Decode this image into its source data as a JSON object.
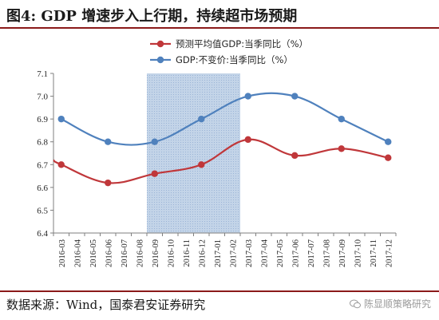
{
  "figure": {
    "title": "图4: GDP 增速步入上行期，持续超市场预期",
    "source": "数据来源：Wind，国泰君安证券研究",
    "watermark": "陈显顺策略研究"
  },
  "chart_data": {
    "type": "line",
    "title": "",
    "xlabel": "",
    "ylabel": "",
    "categories": [
      "2016-03",
      "2016-04",
      "2016-05",
      "2016-06",
      "2016-07",
      "2016-08",
      "2016-09",
      "2016-10",
      "2016-11",
      "2016-12",
      "2017-01",
      "2017-02",
      "2017-03",
      "2017-04",
      "2017-05",
      "2017-06",
      "2017-07",
      "2017-08",
      "2017-09",
      "2017-10",
      "2017-11",
      "2017-12"
    ],
    "ylim": [
      6.4,
      7.1
    ],
    "yticks": [
      "6.4",
      "6.5",
      "6.6",
      "6.7",
      "6.8",
      "6.9",
      "7.0",
      "7.1"
    ],
    "shaded_range": [
      "2016-09",
      "2017-02"
    ],
    "grid": false,
    "legend_position": "top-center",
    "series": [
      {
        "name": "预测平均值GDP:当季同比（%）",
        "color": "#c0373a",
        "smooth": true,
        "lead_in": 6.72,
        "points": [
          {
            "x": "2016-03",
            "y": 6.7
          },
          {
            "x": "2016-06",
            "y": 6.62
          },
          {
            "x": "2016-09",
            "y": 6.66
          },
          {
            "x": "2016-12",
            "y": 6.7
          },
          {
            "x": "2017-03",
            "y": 6.81
          },
          {
            "x": "2017-06",
            "y": 6.74
          },
          {
            "x": "2017-09",
            "y": 6.77
          },
          {
            "x": "2017-12",
            "y": 6.73
          }
        ]
      },
      {
        "name": "GDP:不变价:当季同比（%）",
        "color": "#4f81bd",
        "smooth": true,
        "points": [
          {
            "x": "2016-03",
            "y": 6.9
          },
          {
            "x": "2016-06",
            "y": 6.8
          },
          {
            "x": "2016-09",
            "y": 6.8
          },
          {
            "x": "2016-12",
            "y": 6.9
          },
          {
            "x": "2017-03",
            "y": 7.0
          },
          {
            "x": "2017-06",
            "y": 7.0
          },
          {
            "x": "2017-09",
            "y": 6.9
          },
          {
            "x": "2017-12",
            "y": 6.8
          }
        ]
      }
    ]
  }
}
